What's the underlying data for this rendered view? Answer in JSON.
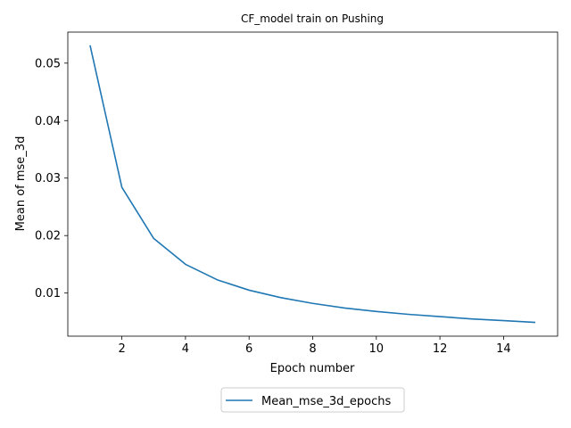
{
  "chart_data": {
    "type": "line",
    "title": "CF_model train on Pushing",
    "xlabel": "Epoch number",
    "ylabel": "Mean of mse_3d",
    "x": [
      1,
      2,
      3,
      4,
      5,
      6,
      7,
      8,
      9,
      10,
      11,
      12,
      13,
      14,
      15
    ],
    "series": [
      {
        "name": "Mean_mse_3d_epochs",
        "color": "#1f77b4",
        "values": [
          0.0531,
          0.0284,
          0.0195,
          0.015,
          0.0123,
          0.0105,
          0.0092,
          0.0082,
          0.0074,
          0.0068,
          0.0063,
          0.0059,
          0.0055,
          0.0052,
          0.0049
        ]
      }
    ],
    "xlim": [
      0.3,
      15.7
    ],
    "ylim": [
      0.0025,
      0.0554
    ],
    "x_ticks": [
      2,
      4,
      6,
      8,
      10,
      12,
      14
    ],
    "x_tick_labels": [
      "2",
      "4",
      "6",
      "8",
      "10",
      "12",
      "14"
    ],
    "y_ticks": [
      0.01,
      0.02,
      0.03,
      0.04,
      0.05
    ],
    "y_tick_labels": [
      "0.01",
      "0.02",
      "0.03",
      "0.04",
      "0.05"
    ],
    "grid": false,
    "legend_placement": "bottom-center outside"
  }
}
